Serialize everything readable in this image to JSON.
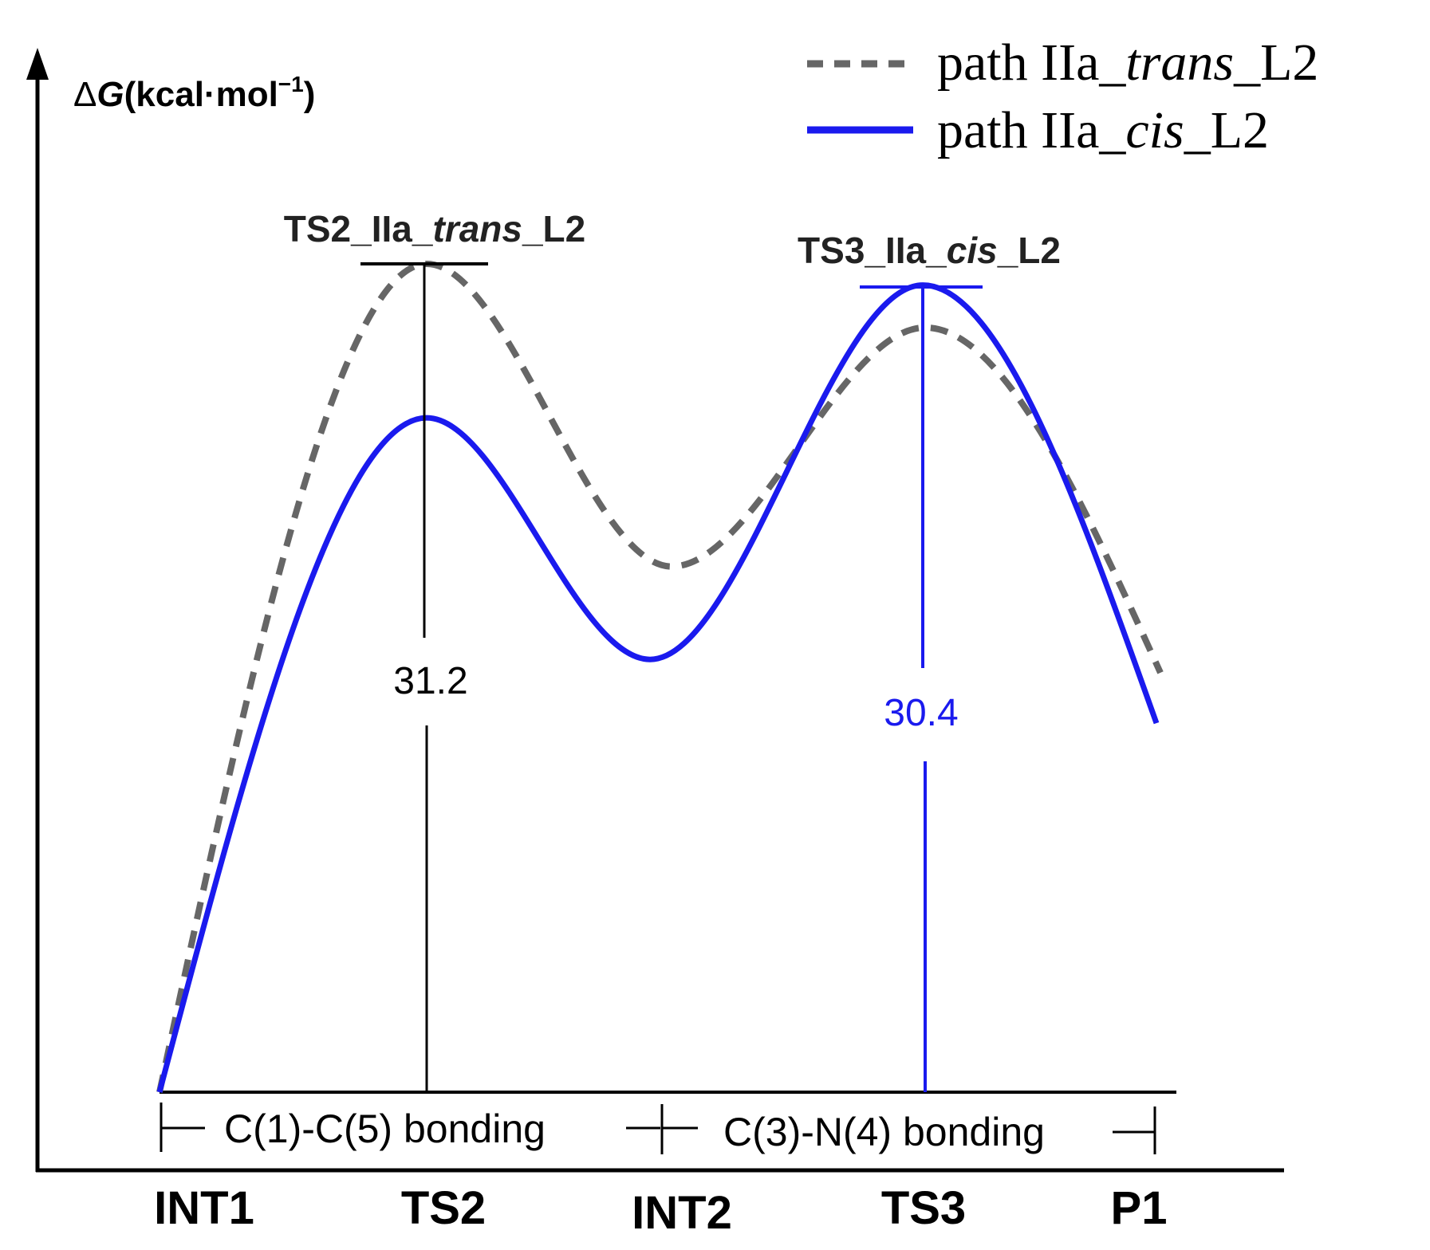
{
  "chart_data": {
    "type": "line",
    "title": "",
    "ylabel": {
      "prefix": "Δ",
      "italic": "G",
      "rest": "(kcal·mol",
      "sup": "−1",
      "close": ")"
    },
    "categories": [
      "INT1",
      "TS2",
      "INT2",
      "TS3",
      "P1"
    ],
    "ylim": [
      0,
      35
    ],
    "grid": false,
    "series": [
      {
        "name": "path IIa_trans_L2",
        "legend": {
          "pre": "path IIa_",
          "italic": "trans",
          "post": "_L2"
        },
        "style": "dashed",
        "color": "#666666",
        "values": [
          0.0,
          31.2,
          19.8,
          28.8,
          15.8
        ]
      },
      {
        "name": "path IIa_cis_L2",
        "legend": {
          "pre": "path IIa_",
          "italic": "cis",
          "post": "_L2"
        },
        "style": "solid",
        "color": "#1a1aee",
        "values": [
          0.0,
          25.4,
          16.3,
          30.4,
          13.9
        ]
      }
    ],
    "transition_states": [
      {
        "category": "TS2",
        "series": "path IIa_trans_L2",
        "label": {
          "pre": "TS2_IIa_",
          "italic": "trans",
          "post": "_L2"
        },
        "barrier": "31.2",
        "color": "#000000"
      },
      {
        "category": "TS3",
        "series": "path IIa_cis_L2",
        "label": {
          "pre": "TS3_IIa_",
          "italic": "cis",
          "post": "_L2"
        },
        "barrier": "30.4",
        "color": "#1a1aee"
      }
    ],
    "annotations": [
      {
        "from": "INT1",
        "to": "INT2",
        "text": "C(1)-C(5) bonding"
      },
      {
        "from": "INT2",
        "to": "P1",
        "text": "C(3)-N(4) bonding"
      }
    ]
  }
}
